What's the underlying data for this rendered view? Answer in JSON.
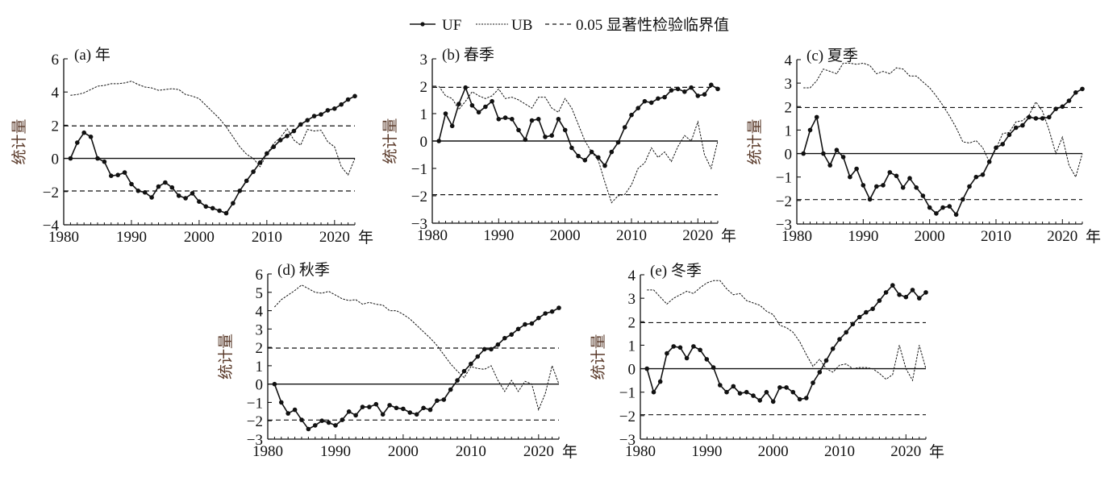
{
  "legend": {
    "uf": "UF",
    "ub": "UB",
    "crit": "0.05 显著性检验临界值"
  },
  "colors": {
    "line": "#111111",
    "ylabel": "#5a3a2a"
  },
  "chart_data": [
    {
      "type": "line",
      "title": "(a) 年",
      "xlabel": "年",
      "ylabel": "统计量",
      "xlim": [
        1980,
        2023
      ],
      "ylim": [
        -4,
        6
      ],
      "yticks": [
        -4,
        -2,
        0,
        2,
        4,
        6
      ],
      "yticklabels": [
        "−4",
        "−2",
        "0",
        "2",
        "4",
        "6"
      ],
      "xticks": [
        1980,
        1990,
        2000,
        2010,
        2020
      ],
      "xticklabels": [
        "1980",
        "1990",
        "2000",
        "2010",
        "2020"
      ],
      "critical": [
        1.96,
        -1.96
      ],
      "x": [
        1981,
        1982,
        1983,
        1984,
        1985,
        1986,
        1987,
        1988,
        1989,
        1990,
        1991,
        1992,
        1993,
        1994,
        1995,
        1996,
        1997,
        1998,
        1999,
        2000,
        2001,
        2002,
        2003,
        2004,
        2005,
        2006,
        2007,
        2008,
        2009,
        2010,
        2011,
        2012,
        2013,
        2014,
        2015,
        2016,
        2017,
        2018,
        2019,
        2020,
        2021,
        2022,
        2023
      ],
      "series": [
        {
          "name": "UF",
          "values": [
            0,
            0.95,
            1.55,
            1.3,
            0,
            -0.2,
            -1.05,
            -1.0,
            -0.85,
            -1.55,
            -1.95,
            -2.05,
            -2.35,
            -1.7,
            -1.45,
            -1.75,
            -2.25,
            -2.4,
            -2.1,
            -2.6,
            -2.9,
            -3.0,
            -3.15,
            -3.3,
            -2.7,
            -1.95,
            -1.35,
            -0.8,
            -0.25,
            0.3,
            0.7,
            1.1,
            1.35,
            1.65,
            2.05,
            2.3,
            2.55,
            2.65,
            2.9,
            3.0,
            3.25,
            3.55,
            3.75
          ]
        },
        {
          "name": "UB",
          "values": [
            3.8,
            3.85,
            3.95,
            4.15,
            4.35,
            4.4,
            4.5,
            4.5,
            4.55,
            4.65,
            4.45,
            4.3,
            4.25,
            4.1,
            4.15,
            4.2,
            4.15,
            3.85,
            3.75,
            3.6,
            3.2,
            2.8,
            2.4,
            1.9,
            1.3,
            0.7,
            0.25,
            0.0,
            -0.5,
            0.25,
            0.9,
            1.25,
            1.8,
            1.1,
            0.8,
            1.75,
            1.65,
            1.7,
            1.0,
            0.7,
            -0.5,
            -1.0,
            0
          ]
        }
      ]
    },
    {
      "type": "line",
      "title": "(b) 春季",
      "xlabel": "年",
      "ylabel": "统计量",
      "xlim": [
        1980,
        2023
      ],
      "ylim": [
        -3,
        3
      ],
      "yticks": [
        -3,
        -2,
        -1,
        0,
        1,
        2,
        3
      ],
      "yticklabels": [
        "−3",
        "−2",
        "−1",
        "0",
        "1",
        "2",
        "3"
      ],
      "xticks": [
        1980,
        1990,
        2000,
        2010,
        2020
      ],
      "xticklabels": [
        "1980",
        "1990",
        "2000",
        "2010",
        "2020"
      ],
      "critical": [
        1.96,
        -1.96
      ],
      "x": [
        1981,
        1982,
        1983,
        1984,
        1985,
        1986,
        1987,
        1988,
        1989,
        1990,
        1991,
        1992,
        1993,
        1994,
        1995,
        1996,
        1997,
        1998,
        1999,
        2000,
        2001,
        2002,
        2003,
        2004,
        2005,
        2006,
        2007,
        2008,
        2009,
        2010,
        2011,
        2012,
        2013,
        2014,
        2015,
        2016,
        2017,
        2018,
        2019,
        2020,
        2021,
        2022,
        2023
      ],
      "series": [
        {
          "name": "UF",
          "values": [
            0,
            1.0,
            0.55,
            1.35,
            1.95,
            1.3,
            1.05,
            1.25,
            1.45,
            0.8,
            0.85,
            0.8,
            0.4,
            0.05,
            0.75,
            0.8,
            0.15,
            0.2,
            0.8,
            0.4,
            -0.25,
            -0.55,
            -0.7,
            -0.4,
            -0.6,
            -0.9,
            -0.4,
            -0.05,
            0.5,
            0.95,
            1.2,
            1.45,
            1.4,
            1.55,
            1.6,
            1.85,
            1.9,
            1.8,
            1.95,
            1.65,
            1.7,
            2.05,
            1.9
          ]
        },
        {
          "name": "UB",
          "values": [
            2.0,
            1.65,
            1.55,
            1.15,
            1.45,
            1.8,
            1.65,
            1.55,
            1.65,
            1.9,
            1.55,
            1.6,
            1.5,
            1.35,
            1.2,
            1.6,
            1.6,
            1.2,
            1.05,
            1.55,
            1.2,
            0.6,
            0.0,
            -0.4,
            -0.7,
            -1.5,
            -2.25,
            -2.0,
            -1.95,
            -1.6,
            -1.0,
            -0.8,
            -0.25,
            -0.6,
            -0.4,
            -0.75,
            -0.2,
            0.2,
            0.0,
            0.7,
            -0.5,
            -1.0,
            0
          ]
        }
      ]
    },
    {
      "type": "line",
      "title": "(c) 夏季",
      "xlabel": "年",
      "ylabel": "统计量",
      "xlim": [
        1980,
        2023
      ],
      "ylim": [
        -3,
        4
      ],
      "yticks": [
        -3,
        -2,
        -1,
        0,
        1,
        2,
        3,
        4
      ],
      "yticklabels": [
        "−3",
        "−2",
        "−1",
        "0",
        "1",
        "2",
        "3",
        "4"
      ],
      "xticks": [
        1980,
        1990,
        2000,
        2010,
        2020
      ],
      "xticklabels": [
        "1980",
        "1990",
        "2000",
        "2010",
        "2020"
      ],
      "critical": [
        1.96,
        -1.96
      ],
      "x": [
        1981,
        1982,
        1983,
        1984,
        1985,
        1986,
        1987,
        1988,
        1989,
        1990,
        1991,
        1992,
        1993,
        1994,
        1995,
        1996,
        1997,
        1998,
        1999,
        2000,
        2001,
        2002,
        2003,
        2004,
        2005,
        2006,
        2007,
        2008,
        2009,
        2010,
        2011,
        2012,
        2013,
        2014,
        2015,
        2016,
        2017,
        2018,
        2019,
        2020,
        2021,
        2022,
        2023
      ],
      "series": [
        {
          "name": "UF",
          "values": [
            0,
            1.0,
            1.55,
            0,
            -0.5,
            0.15,
            -0.15,
            -1.0,
            -0.65,
            -1.35,
            -1.95,
            -1.4,
            -1.35,
            -0.8,
            -0.95,
            -1.45,
            -1.05,
            -1.45,
            -1.8,
            -2.3,
            -2.55,
            -2.3,
            -2.25,
            -2.6,
            -1.95,
            -1.4,
            -1.0,
            -0.9,
            -0.35,
            0.25,
            0.4,
            0.8,
            1.1,
            1.2,
            1.55,
            1.5,
            1.5,
            1.55,
            1.9,
            2.0,
            2.25,
            2.6,
            2.75
          ]
        },
        {
          "name": "UB",
          "values": [
            2.8,
            2.8,
            3.1,
            3.6,
            3.5,
            3.4,
            3.85,
            3.85,
            3.8,
            3.85,
            3.75,
            3.4,
            3.5,
            3.4,
            3.65,
            3.6,
            3.3,
            3.3,
            3.05,
            2.8,
            2.45,
            2.05,
            1.6,
            1.1,
            0.5,
            0.45,
            0.55,
            0.25,
            -0.35,
            0.2,
            0.85,
            0.9,
            1.35,
            1.4,
            1.65,
            2.2,
            1.8,
            1.0,
            0.0,
            0.7,
            -0.5,
            -1.0,
            0
          ]
        }
      ]
    },
    {
      "type": "line",
      "title": "(d) 秋季",
      "xlabel": "年",
      "ylabel": "统计量",
      "xlim": [
        1980,
        2023
      ],
      "ylim": [
        -3,
        6
      ],
      "yticks": [
        -3,
        -2,
        -1,
        0,
        1,
        2,
        3,
        4,
        5,
        6
      ],
      "yticklabels": [
        "−3",
        "−2",
        "−1",
        "0",
        "1",
        "2",
        "3",
        "4",
        "5",
        "6"
      ],
      "xticks": [
        1980,
        1990,
        2000,
        2010,
        2020
      ],
      "xticklabels": [
        "1980",
        "1990",
        "2000",
        "2010",
        "2020"
      ],
      "critical": [
        1.96,
        -1.96
      ],
      "x": [
        1981,
        1982,
        1983,
        1984,
        1985,
        1986,
        1987,
        1988,
        1989,
        1990,
        1991,
        1992,
        1993,
        1994,
        1995,
        1996,
        1997,
        1998,
        1999,
        2000,
        2001,
        2002,
        2003,
        2004,
        2005,
        2006,
        2007,
        2008,
        2009,
        2010,
        2011,
        2012,
        2013,
        2014,
        2015,
        2016,
        2017,
        2018,
        2019,
        2020,
        2021,
        2022,
        2023
      ],
      "series": [
        {
          "name": "UF",
          "values": [
            0,
            -1.0,
            -1.6,
            -1.4,
            -1.95,
            -2.45,
            -2.25,
            -2.0,
            -2.1,
            -2.25,
            -1.95,
            -1.5,
            -1.7,
            -1.25,
            -1.25,
            -1.1,
            -1.65,
            -1.15,
            -1.3,
            -1.35,
            -1.55,
            -1.65,
            -1.3,
            -1.4,
            -0.9,
            -0.85,
            -0.3,
            0.2,
            0.7,
            1.1,
            1.5,
            1.9,
            1.9,
            2.15,
            2.5,
            2.7,
            3.0,
            3.25,
            3.3,
            3.6,
            3.85,
            3.95,
            4.15
          ]
        },
        {
          "name": "UB",
          "values": [
            4.2,
            4.6,
            4.85,
            5.1,
            5.4,
            5.2,
            5.0,
            4.95,
            5.05,
            4.85,
            4.65,
            4.55,
            4.6,
            4.35,
            4.45,
            4.35,
            4.3,
            4.0,
            4.0,
            3.8,
            3.55,
            3.2,
            2.85,
            2.5,
            2.1,
            1.6,
            1.1,
            0.7,
            0.35,
            0.95,
            0.85,
            0.8,
            1.0,
            0.2,
            -0.4,
            0.2,
            -0.4,
            0.15,
            0.0,
            -1.4,
            -0.5,
            1.0,
            0
          ]
        }
      ]
    },
    {
      "type": "line",
      "title": "(e) 冬季",
      "xlabel": "年",
      "ylabel": "统计量",
      "xlim": [
        1980,
        2023
      ],
      "ylim": [
        -3,
        4
      ],
      "yticks": [
        -3,
        -2,
        -1,
        0,
        1,
        2,
        3,
        4
      ],
      "yticklabels": [
        "−3",
        "−2",
        "−1",
        "0",
        "1",
        "2",
        "3",
        "4"
      ],
      "xticks": [
        1980,
        1990,
        2000,
        2010,
        2020
      ],
      "xticklabels": [
        "1980",
        "1990",
        "2000",
        "2010",
        "2020"
      ],
      "critical": [
        1.96,
        -1.96
      ],
      "x": [
        1981,
        1982,
        1983,
        1984,
        1985,
        1986,
        1987,
        1988,
        1989,
        1990,
        1991,
        1992,
        1993,
        1994,
        1995,
        1996,
        1997,
        1998,
        1999,
        2000,
        2001,
        2002,
        2003,
        2004,
        2005,
        2006,
        2007,
        2008,
        2009,
        2010,
        2011,
        2012,
        2013,
        2014,
        2015,
        2016,
        2017,
        2018,
        2019,
        2020,
        2021,
        2022,
        2023
      ],
      "series": [
        {
          "name": "UF",
          "values": [
            0,
            -1.0,
            -0.55,
            0.65,
            0.95,
            0.9,
            0.45,
            0.95,
            0.8,
            0.4,
            0.05,
            -0.7,
            -1.0,
            -0.75,
            -1.05,
            -1.0,
            -1.15,
            -1.35,
            -1.0,
            -1.4,
            -0.8,
            -0.8,
            -1.0,
            -1.3,
            -1.25,
            -0.6,
            -0.15,
            0.35,
            0.85,
            1.25,
            1.55,
            1.9,
            2.2,
            2.4,
            2.55,
            2.9,
            3.25,
            3.55,
            3.15,
            3.05,
            3.35,
            3.0,
            3.25
          ]
        },
        {
          "name": "UB",
          "values": [
            3.35,
            3.35,
            3.05,
            2.75,
            3.0,
            3.15,
            3.3,
            3.2,
            3.45,
            3.65,
            3.75,
            3.75,
            3.4,
            3.15,
            3.2,
            2.9,
            2.8,
            2.7,
            2.45,
            2.3,
            1.85,
            1.75,
            1.55,
            1.15,
            0.6,
            0.1,
            0.4,
            0.0,
            -0.15,
            0.15,
            0.2,
            0.0,
            0.05,
            0.05,
            0.0,
            -0.2,
            -0.45,
            -0.25,
            1.0,
            0.0,
            -0.5,
            1.0,
            0
          ]
        }
      ]
    }
  ]
}
